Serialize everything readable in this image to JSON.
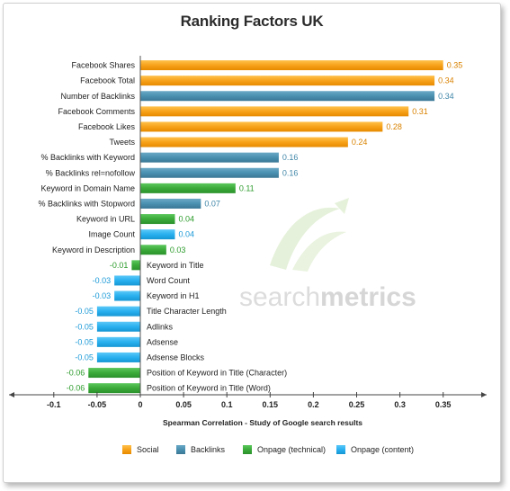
{
  "chart_data": {
    "type": "bar",
    "orientation": "horizontal",
    "title": "Ranking Factors UK",
    "xlabel": "Spearman Correlation - Study of Google search results",
    "xlim": [
      -0.1,
      0.35
    ],
    "xticks": [
      "-0.1",
      "-0.05",
      "0",
      "0.05",
      "0.1",
      "0.15",
      "0.2",
      "0.25",
      "0.3",
      "0.35"
    ],
    "grid": false,
    "legend_position": "bottom",
    "groups": [
      {
        "name": "Social",
        "color": "#f39c12"
      },
      {
        "name": "Backlinks",
        "color": "#4a90b0"
      },
      {
        "name": "Onpage (technical)",
        "color": "#3aaa3a"
      },
      {
        "name": "Onpage (content)",
        "color": "#29b0ef"
      }
    ],
    "bars": [
      {
        "label": "Facebook Shares",
        "value": 0.35,
        "display": "0.35",
        "group": 0
      },
      {
        "label": "Facebook Total",
        "value": 0.34,
        "display": "0.34",
        "group": 0
      },
      {
        "label": "Number of Backlinks",
        "value": 0.34,
        "display": "0.34",
        "group": 1
      },
      {
        "label": "Facebook Comments",
        "value": 0.31,
        "display": "0.31",
        "group": 0
      },
      {
        "label": "Facebook Likes",
        "value": 0.28,
        "display": "0.28",
        "group": 0
      },
      {
        "label": "Tweets",
        "value": 0.24,
        "display": "0.24",
        "group": 0
      },
      {
        "label": "% Backlinks with Keyword",
        "value": 0.16,
        "display": "0.16",
        "group": 1
      },
      {
        "label": "% Backlinks rel=nofollow",
        "value": 0.16,
        "display": "0.16",
        "group": 1
      },
      {
        "label": "Keyword in Domain Name",
        "value": 0.11,
        "display": "0.11",
        "group": 2
      },
      {
        "label": "% Backlinks with Stopword",
        "value": 0.07,
        "display": "0.07",
        "group": 1
      },
      {
        "label": "Keyword in URL",
        "value": 0.04,
        "display": "0.04",
        "group": 2
      },
      {
        "label": "Image Count",
        "value": 0.04,
        "display": "0.04",
        "group": 3
      },
      {
        "label": "Keyword in Description",
        "value": 0.03,
        "display": "0.03",
        "group": 2
      },
      {
        "label": "Keyword in Title",
        "value": -0.01,
        "display": "-0.01",
        "group": 2
      },
      {
        "label": "Word Count",
        "value": -0.03,
        "display": "-0.03",
        "group": 3
      },
      {
        "label": "Keyword in H1",
        "value": -0.03,
        "display": "-0.03",
        "group": 3
      },
      {
        "label": "Title Character Length",
        "value": -0.05,
        "display": "-0.05",
        "group": 3
      },
      {
        "label": "Adlinks",
        "value": -0.05,
        "display": "-0.05",
        "group": 3
      },
      {
        "label": "Adsense",
        "value": -0.05,
        "display": "-0.05",
        "group": 3
      },
      {
        "label": "Adsense Blocks",
        "value": -0.05,
        "display": "-0.05",
        "group": 3
      },
      {
        "label": "Position of Keyword in Title (Character)",
        "value": -0.06,
        "display": "-0.06",
        "group": 2
      },
      {
        "label": "Position of Keyword in Title (Word)",
        "value": -0.06,
        "display": "-0.06",
        "group": 2
      }
    ],
    "watermark": {
      "part1": "search",
      "part2": "metrics"
    }
  }
}
